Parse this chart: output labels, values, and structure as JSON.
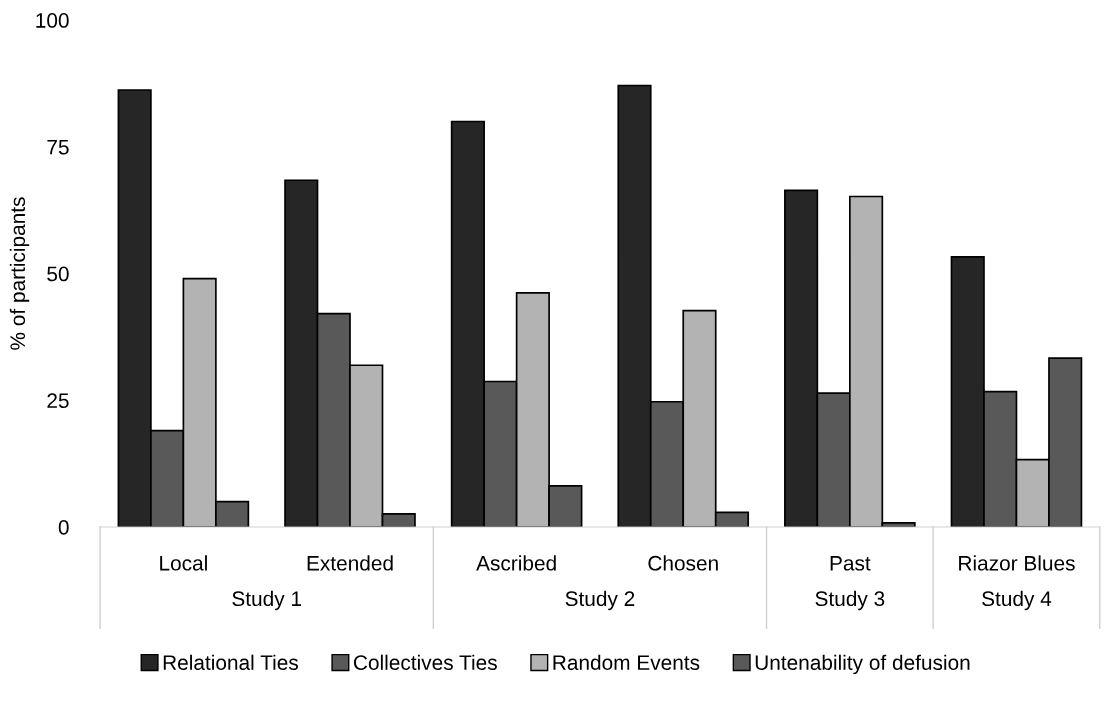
{
  "chart_data": {
    "type": "bar",
    "ylabel": "% of participants",
    "categories": [
      "Local",
      "Extended",
      "Ascribed",
      "Chosen",
      "Past",
      "Riazor Blues"
    ],
    "annotations": [
      "Study 1",
      "Study 2",
      "Study 3",
      "Study 4"
    ],
    "series": [
      {
        "name": "Relational Ties",
        "color": "#262626",
        "values": [
          86.2,
          68.4,
          80.0,
          87.1,
          66.4,
          53.3
        ]
      },
      {
        "name": "Collectives Ties",
        "color": "#595959",
        "values": [
          19.0,
          42.1,
          28.7,
          24.7,
          26.4,
          26.7
        ]
      },
      {
        "name": "Random Events",
        "color": "#b3b3b3",
        "values": [
          49.0,
          31.9,
          46.2,
          42.7,
          65.2,
          13.3
        ]
      },
      {
        "name": "Untenability of defusion",
        "color": "#595959",
        "values": [
          5.0,
          2.6,
          8.1,
          2.9,
          0.8,
          33.3
        ]
      }
    ],
    "ylim": [
      0,
      100
    ],
    "yticks": [
      0,
      25,
      50,
      75,
      100
    ],
    "grid": false,
    "legend": "bottom"
  }
}
